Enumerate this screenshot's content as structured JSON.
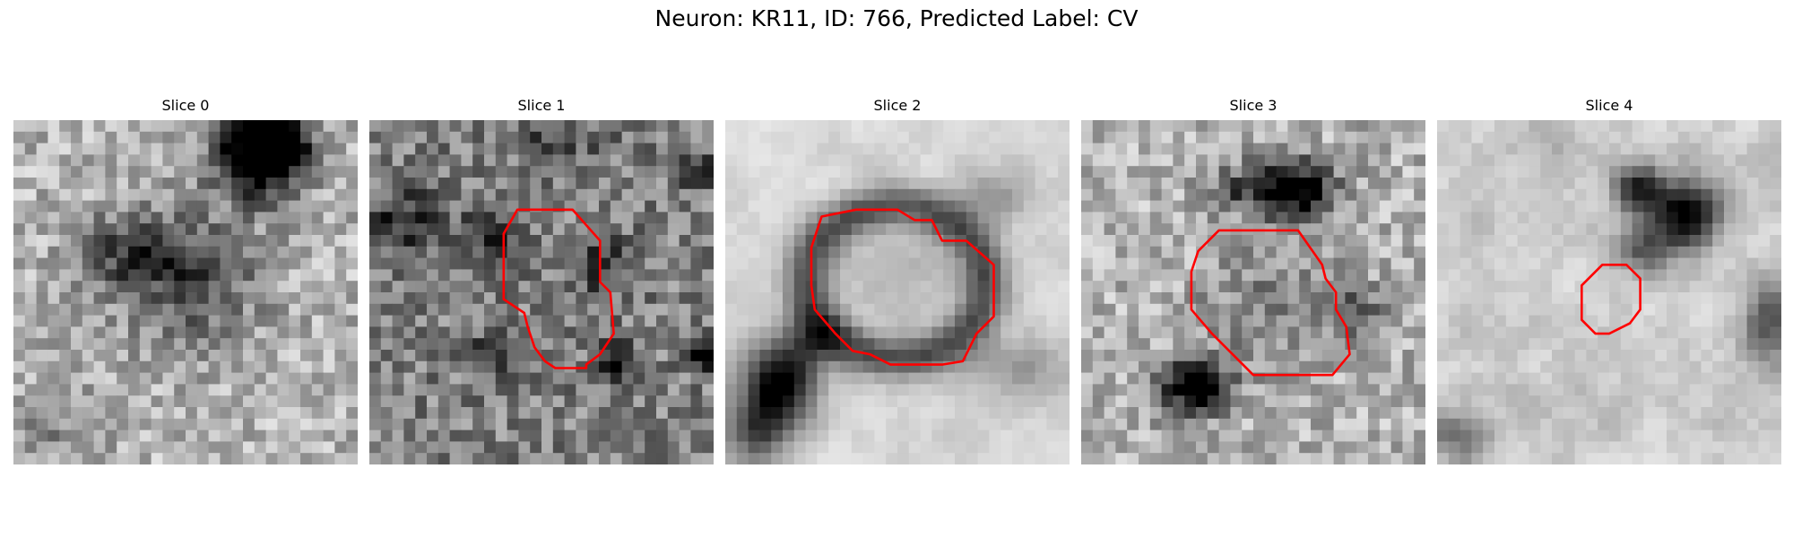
{
  "figure": {
    "title": "Neuron: KR11, ID: 766, Predicted Label: CV"
  },
  "slices": [
    {
      "title": "Slice 0",
      "has_outline": false,
      "grid_size": 30
    },
    {
      "title": "Slice 1",
      "has_outline": true,
      "grid_size": 30
    },
    {
      "title": "Slice 2",
      "has_outline": true,
      "grid_size": 30
    },
    {
      "title": "Slice 3",
      "has_outline": true,
      "grid_size": 30
    },
    {
      "title": "Slice 4",
      "has_outline": true,
      "grid_size": 30
    }
  ],
  "colors": {
    "outline": "#ff0000",
    "background": "#ffffff",
    "colormap": "gray"
  }
}
